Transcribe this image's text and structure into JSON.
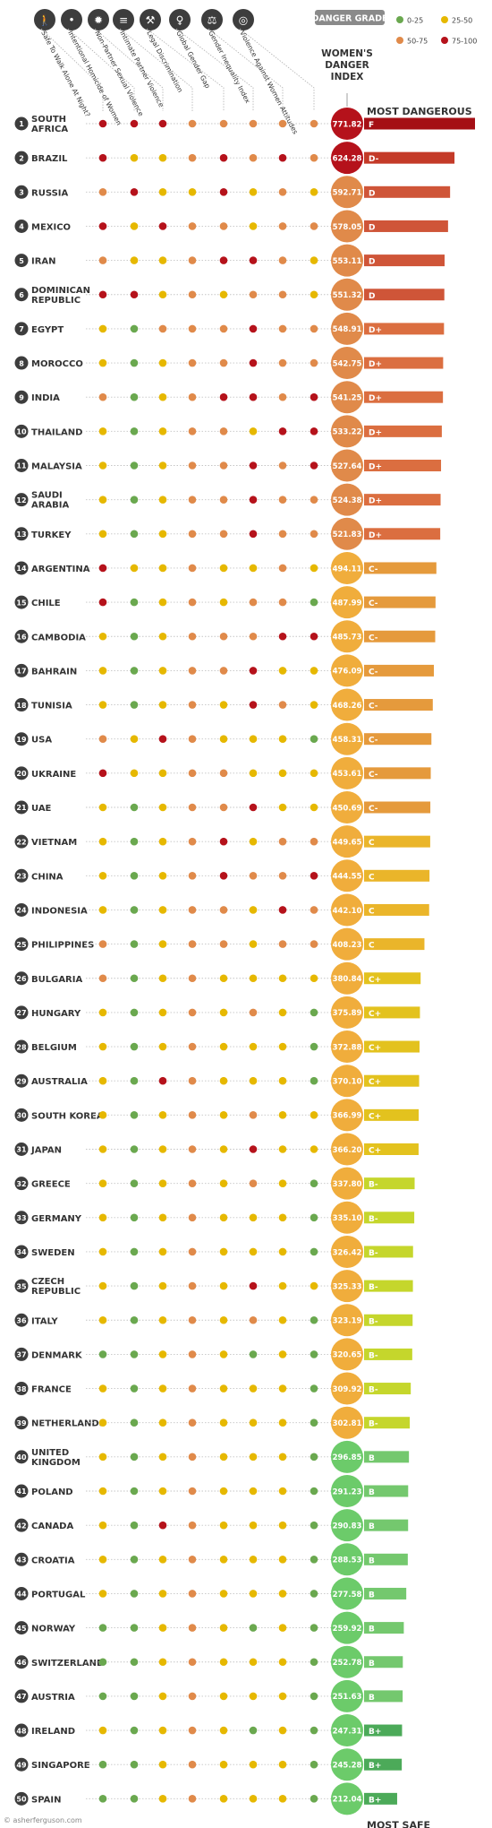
{
  "legend": {
    "title": "DANGER GRADE",
    "items": [
      {
        "label": "0-25",
        "color": "#6aa84f"
      },
      {
        "label": "25-50",
        "color": "#e6b800"
      },
      {
        "label": "50-75",
        "color": "#e08a4a"
      },
      {
        "label": "75-100",
        "color": "#b5121b"
      }
    ]
  },
  "index_header": [
    "WOMEN'S",
    "DANGER",
    "INDEX"
  ],
  "most_dangerous_label": "MOST DANGEROUS",
  "most_safe_label": "MOST SAFE",
  "credit": "© asherferguson.com",
  "columns": [
    {
      "label": "Safe To Walk Alone At Night?",
      "icon": "walking-person-icon"
    },
    {
      "label": "Intentional Homicide of Women",
      "icon": "gun-icon"
    },
    {
      "label": "Non-Partner Sexual Violence",
      "icon": "burst-icon"
    },
    {
      "label": "Intimate Partner Violence",
      "icon": "document-icon"
    },
    {
      "label": "Legal Discrimination",
      "icon": "gavel-icon"
    },
    {
      "label": "Global Gender Gap",
      "icon": "female-symbol-icon"
    },
    {
      "label": "Gender Inequality Index",
      "icon": "scale-icon"
    },
    {
      "label": "Violence Against Women Attitudes",
      "icon": "globe-icon"
    }
  ],
  "grade_colors": {
    "F": "#a50f15",
    "D-": "#c43a28",
    "D": "#cf5538",
    "D+": "#db6e40",
    "C-": "#e59a3c",
    "C": "#eab52a",
    "C+": "#e3c21e",
    "B-": "#c5d62c",
    "B": "#74c86e",
    "B+": "#4caa59"
  },
  "index_colors": {
    "dangerous": "#b5121b",
    "high": "#e08a4a",
    "mid": "#f0ad3c",
    "safe": "#6ccb6a"
  },
  "chart_data": {
    "type": "table",
    "title": "Women's Danger Index",
    "value_column": "Women's Danger Index",
    "grade_column": "Danger Grade",
    "rows": [
      {
        "rank": "1",
        "country": [
          "SOUTH",
          "AFRICA"
        ],
        "index": "771.82",
        "grade": "F",
        "levels": [
          4,
          4,
          4,
          3,
          3,
          3,
          3,
          3
        ]
      },
      {
        "rank": "2",
        "country": [
          "BRAZIL"
        ],
        "index": "624.28",
        "grade": "D-",
        "levels": [
          4,
          2,
          2,
          3,
          4,
          3,
          4,
          3
        ]
      },
      {
        "rank": "3",
        "country": [
          "RUSSIA"
        ],
        "index": "592.71",
        "grade": "D",
        "levels": [
          3,
          4,
          2,
          2,
          4,
          2,
          3,
          2
        ]
      },
      {
        "rank": "4",
        "country": [
          "MEXICO"
        ],
        "index": "578.05",
        "grade": "D",
        "levels": [
          4,
          2,
          4,
          3,
          3,
          2,
          3,
          3
        ]
      },
      {
        "rank": "5",
        "country": [
          "IRAN"
        ],
        "index": "553.11",
        "grade": "D",
        "levels": [
          3,
          2,
          2,
          3,
          4,
          4,
          3,
          2
        ]
      },
      {
        "rank": "6",
        "country": [
          "DOMINICAN",
          "REPUBLIC"
        ],
        "index": "551.32",
        "grade": "D",
        "levels": [
          4,
          4,
          2,
          3,
          2,
          3,
          3,
          2
        ]
      },
      {
        "rank": "7",
        "country": [
          "EGYPT"
        ],
        "index": "548.91",
        "grade": "D+",
        "levels": [
          2,
          1,
          3,
          3,
          3,
          4,
          3,
          3
        ]
      },
      {
        "rank": "8",
        "country": [
          "MOROCCO"
        ],
        "index": "542.75",
        "grade": "D+",
        "levels": [
          2,
          1,
          2,
          3,
          3,
          4,
          3,
          3
        ]
      },
      {
        "rank": "9",
        "country": [
          "INDIA"
        ],
        "index": "541.25",
        "grade": "D+",
        "levels": [
          3,
          1,
          2,
          3,
          4,
          4,
          3,
          4
        ]
      },
      {
        "rank": "10",
        "country": [
          "THAILAND"
        ],
        "index": "533.22",
        "grade": "D+",
        "levels": [
          2,
          1,
          2,
          3,
          3,
          2,
          4,
          4
        ]
      },
      {
        "rank": "11",
        "country": [
          "MALAYSIA"
        ],
        "index": "527.64",
        "grade": "D+",
        "levels": [
          2,
          1,
          2,
          3,
          3,
          4,
          3,
          4
        ]
      },
      {
        "rank": "12",
        "country": [
          "SAUDI",
          "ARABIA"
        ],
        "index": "524.38",
        "grade": "D+",
        "levels": [
          2,
          1,
          2,
          3,
          3,
          4,
          3,
          3
        ]
      },
      {
        "rank": "13",
        "country": [
          "TURKEY"
        ],
        "index": "521.83",
        "grade": "D+",
        "levels": [
          2,
          1,
          2,
          3,
          3,
          4,
          3,
          3
        ]
      },
      {
        "rank": "14",
        "country": [
          "ARGENTINA"
        ],
        "index": "494.11",
        "grade": "C-",
        "levels": [
          4,
          2,
          2,
          3,
          2,
          2,
          3,
          2
        ]
      },
      {
        "rank": "15",
        "country": [
          "CHILE"
        ],
        "index": "487.99",
        "grade": "C-",
        "levels": [
          4,
          1,
          2,
          3,
          2,
          3,
          3,
          1
        ]
      },
      {
        "rank": "16",
        "country": [
          "CAMBODIA"
        ],
        "index": "485.73",
        "grade": "C-",
        "levels": [
          2,
          1,
          2,
          3,
          3,
          3,
          4,
          4
        ]
      },
      {
        "rank": "17",
        "country": [
          "BAHRAIN"
        ],
        "index": "476.09",
        "grade": "C-",
        "levels": [
          2,
          1,
          2,
          3,
          3,
          4,
          2,
          2
        ]
      },
      {
        "rank": "18",
        "country": [
          "TUNISIA"
        ],
        "index": "468.26",
        "grade": "C-",
        "levels": [
          2,
          1,
          2,
          3,
          2,
          4,
          3,
          2
        ]
      },
      {
        "rank": "19",
        "country": [
          "USA"
        ],
        "index": "458.31",
        "grade": "C-",
        "levels": [
          3,
          2,
          4,
          3,
          2,
          2,
          2,
          1
        ]
      },
      {
        "rank": "20",
        "country": [
          "UKRAINE"
        ],
        "index": "453.61",
        "grade": "C-",
        "levels": [
          4,
          2,
          2,
          3,
          3,
          2,
          2,
          2
        ]
      },
      {
        "rank": "21",
        "country": [
          "UAE"
        ],
        "index": "450.69",
        "grade": "C-",
        "levels": [
          2,
          1,
          2,
          3,
          3,
          4,
          2,
          2
        ]
      },
      {
        "rank": "22",
        "country": [
          "VIETNAM"
        ],
        "index": "449.65",
        "grade": "C",
        "levels": [
          2,
          1,
          2,
          3,
          4,
          2,
          3,
          3
        ]
      },
      {
        "rank": "23",
        "country": [
          "CHINA"
        ],
        "index": "444.55",
        "grade": "C",
        "levels": [
          2,
          1,
          2,
          3,
          4,
          3,
          3,
          4
        ]
      },
      {
        "rank": "24",
        "country": [
          "INDONESIA"
        ],
        "index": "442.10",
        "grade": "C",
        "levels": [
          2,
          1,
          2,
          3,
          3,
          2,
          4,
          3
        ]
      },
      {
        "rank": "25",
        "country": [
          "PHILIPPINES"
        ],
        "index": "408.23",
        "grade": "C",
        "levels": [
          3,
          1,
          2,
          3,
          3,
          2,
          3,
          3
        ]
      },
      {
        "rank": "26",
        "country": [
          "BULGARIA"
        ],
        "index": "380.84",
        "grade": "C+",
        "levels": [
          3,
          1,
          2,
          3,
          2,
          2,
          2,
          2
        ]
      },
      {
        "rank": "27",
        "country": [
          "HUNGARY"
        ],
        "index": "375.89",
        "grade": "C+",
        "levels": [
          2,
          1,
          2,
          3,
          2,
          3,
          2,
          1
        ]
      },
      {
        "rank": "28",
        "country": [
          "BELGIUM"
        ],
        "index": "372.88",
        "grade": "C+",
        "levels": [
          2,
          1,
          2,
          3,
          2,
          2,
          2,
          1
        ]
      },
      {
        "rank": "29",
        "country": [
          "AUSTRALIA"
        ],
        "index": "370.10",
        "grade": "C+",
        "levels": [
          2,
          1,
          4,
          3,
          2,
          2,
          2,
          1
        ]
      },
      {
        "rank": "30",
        "country": [
          "SOUTH KOREA"
        ],
        "index": "366.99",
        "grade": "C+",
        "levels": [
          2,
          1,
          2,
          3,
          2,
          3,
          2,
          2
        ]
      },
      {
        "rank": "31",
        "country": [
          "JAPAN"
        ],
        "index": "366.20",
        "grade": "C+",
        "levels": [
          2,
          1,
          2,
          3,
          2,
          4,
          2,
          2
        ]
      },
      {
        "rank": "32",
        "country": [
          "GREECE"
        ],
        "index": "337.80",
        "grade": "B-",
        "levels": [
          2,
          1,
          2,
          3,
          2,
          3,
          2,
          1
        ]
      },
      {
        "rank": "33",
        "country": [
          "GERMANY"
        ],
        "index": "335.10",
        "grade": "B-",
        "levels": [
          2,
          1,
          2,
          3,
          2,
          2,
          2,
          1
        ]
      },
      {
        "rank": "34",
        "country": [
          "SWEDEN"
        ],
        "index": "326.42",
        "grade": "B-",
        "levels": [
          2,
          1,
          2,
          3,
          2,
          2,
          2,
          1
        ]
      },
      {
        "rank": "35",
        "country": [
          "CZECH",
          "REPUBLIC"
        ],
        "index": "325.33",
        "grade": "B-",
        "levels": [
          2,
          1,
          2,
          3,
          2,
          4,
          2,
          2
        ]
      },
      {
        "rank": "36",
        "country": [
          "ITALY"
        ],
        "index": "323.19",
        "grade": "B-",
        "levels": [
          2,
          1,
          2,
          3,
          2,
          3,
          2,
          1
        ]
      },
      {
        "rank": "37",
        "country": [
          "DENMARK"
        ],
        "index": "320.65",
        "grade": "B-",
        "levels": [
          1,
          1,
          2,
          3,
          2,
          1,
          2,
          1
        ]
      },
      {
        "rank": "38",
        "country": [
          "FRANCE"
        ],
        "index": "309.92",
        "grade": "B-",
        "levels": [
          2,
          1,
          2,
          3,
          2,
          2,
          2,
          1
        ]
      },
      {
        "rank": "39",
        "country": [
          "NETHERLANDS"
        ],
        "index": "302.81",
        "grade": "B-",
        "levels": [
          2,
          1,
          2,
          3,
          2,
          2,
          2,
          1
        ]
      },
      {
        "rank": "40",
        "country": [
          "UNITED",
          "KINGDOM"
        ],
        "index": "296.85",
        "grade": "B",
        "levels": [
          2,
          1,
          2,
          3,
          2,
          2,
          2,
          1
        ]
      },
      {
        "rank": "41",
        "country": [
          "POLAND"
        ],
        "index": "291.23",
        "grade": "B",
        "levels": [
          2,
          1,
          2,
          3,
          2,
          2,
          2,
          1
        ]
      },
      {
        "rank": "42",
        "country": [
          "CANADA"
        ],
        "index": "290.83",
        "grade": "B",
        "levels": [
          2,
          1,
          4,
          3,
          2,
          2,
          2,
          1
        ]
      },
      {
        "rank": "43",
        "country": [
          "CROATIA"
        ],
        "index": "288.53",
        "grade": "B",
        "levels": [
          2,
          1,
          2,
          3,
          2,
          2,
          2,
          1
        ]
      },
      {
        "rank": "44",
        "country": [
          "PORTUGAL"
        ],
        "index": "277.58",
        "grade": "B",
        "levels": [
          2,
          1,
          2,
          3,
          2,
          2,
          2,
          1
        ]
      },
      {
        "rank": "45",
        "country": [
          "NORWAY"
        ],
        "index": "259.92",
        "grade": "B",
        "levels": [
          1,
          1,
          2,
          3,
          2,
          1,
          2,
          1
        ]
      },
      {
        "rank": "46",
        "country": [
          "SWITZERLAND"
        ],
        "index": "252.78",
        "grade": "B",
        "levels": [
          1,
          1,
          2,
          3,
          2,
          2,
          2,
          1
        ]
      },
      {
        "rank": "47",
        "country": [
          "AUSTRIA"
        ],
        "index": "251.63",
        "grade": "B",
        "levels": [
          1,
          1,
          2,
          3,
          2,
          2,
          2,
          1
        ]
      },
      {
        "rank": "48",
        "country": [
          "IRELAND"
        ],
        "index": "247.31",
        "grade": "B+",
        "levels": [
          2,
          1,
          2,
          3,
          2,
          1,
          2,
          1
        ]
      },
      {
        "rank": "49",
        "country": [
          "SINGAPORE"
        ],
        "index": "245.28",
        "grade": "B+",
        "levels": [
          1,
          1,
          2,
          3,
          2,
          2,
          2,
          1
        ]
      },
      {
        "rank": "50",
        "country": [
          "SPAIN"
        ],
        "index": "212.04",
        "grade": "B+",
        "levels": [
          1,
          1,
          2,
          3,
          2,
          2,
          2,
          1
        ]
      }
    ]
  }
}
